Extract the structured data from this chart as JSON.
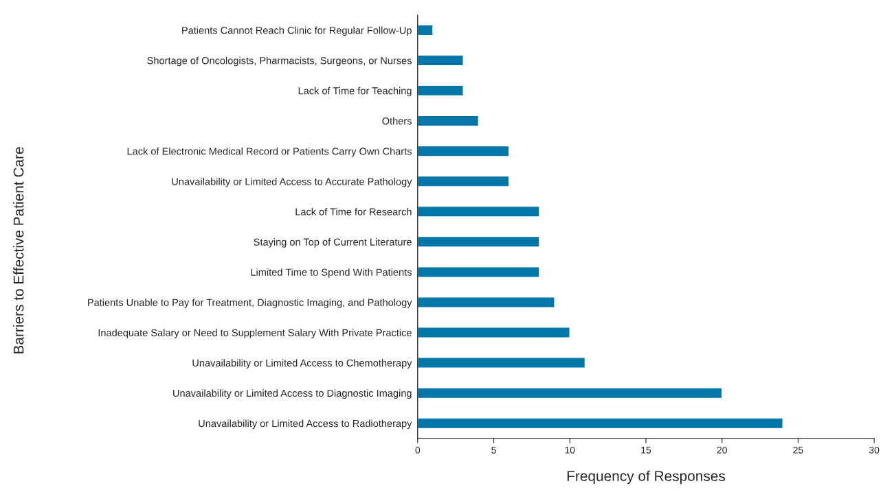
{
  "chart_data": {
    "type": "bar",
    "orientation": "horizontal",
    "xlabel": "Frequency of Responses",
    "ylabel": "Barriers to Effective Patient Care",
    "categories": [
      "Patients Cannot Reach Clinic for Regular Follow-Up",
      "Shortage of Oncologists, Pharmacists, Surgeons, or Nurses",
      "Lack of Time for Teaching",
      "Others",
      "Lack of Electronic Medical Record or Patients Carry Own Charts",
      "Unavailability or Limited Access to Accurate Pathology",
      "Lack of Time for Research",
      "Staying on Top of Current Literature",
      "Limited Time to Spend With Patients",
      "Patients Unable to Pay for Treatment, Diagnostic Imaging, and Pathology",
      "Inadequate Salary or Need to Supplement Salary With Private Practice",
      "Unavailability or Limited Access to Chemotherapy",
      "Unavailability or Limited Access to Diagnostic Imaging",
      "Unavailability or Limited Access to Radiotherapy"
    ],
    "values": [
      1,
      3,
      3,
      4,
      6,
      6,
      8,
      8,
      8,
      9,
      10,
      11,
      20,
      24
    ],
    "color": "#0077a8",
    "xlim": [
      0,
      30
    ],
    "xticks": [
      0,
      5,
      10,
      15,
      20,
      25,
      30
    ],
    "grid": false,
    "legend": false
  }
}
